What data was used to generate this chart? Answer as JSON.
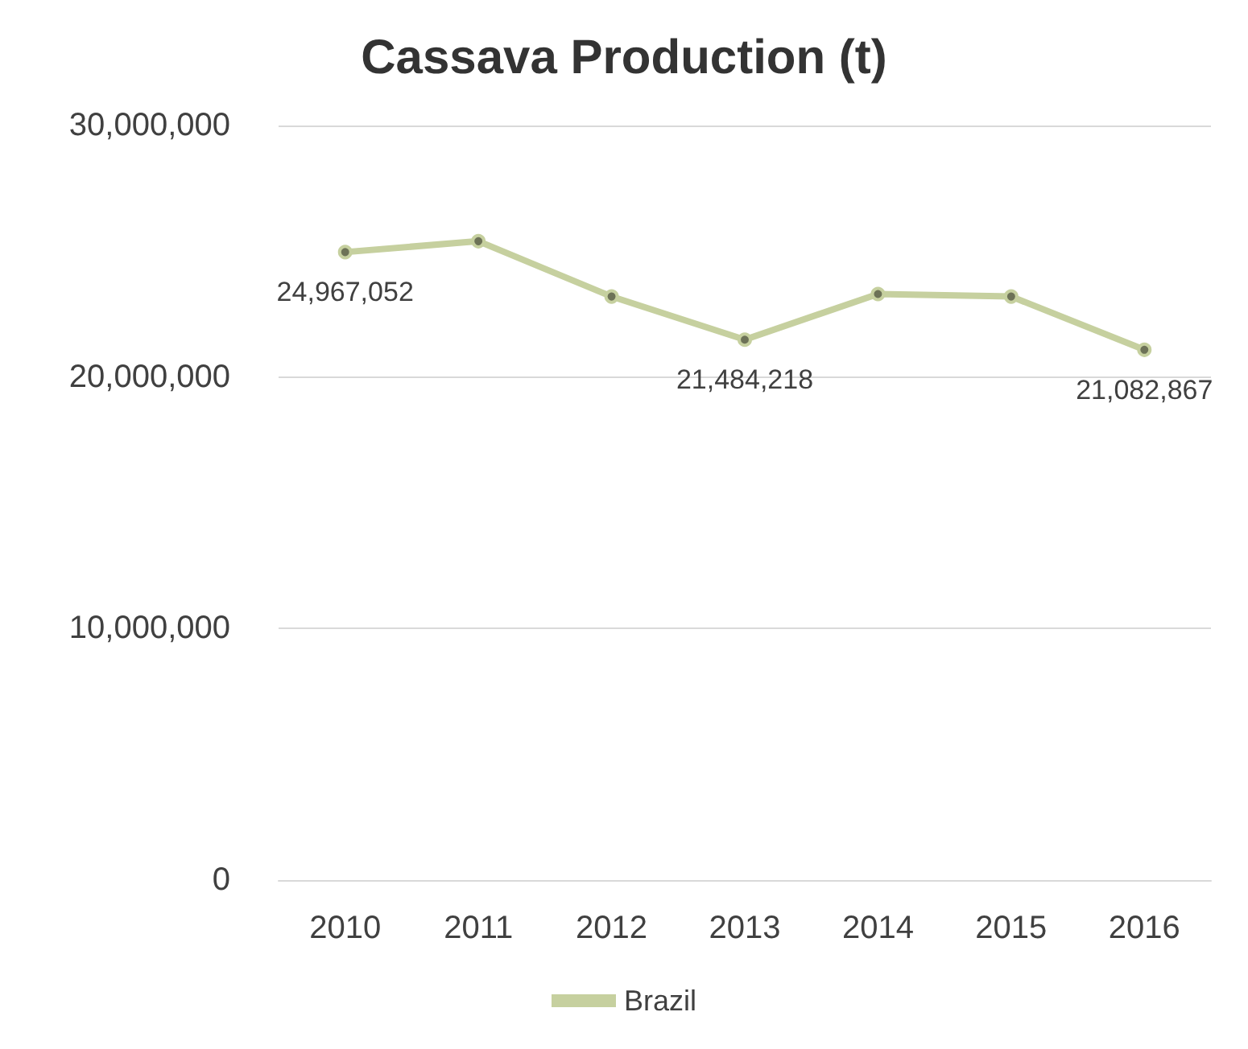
{
  "chart_data": {
    "type": "line",
    "title": "Cassava Production (t)",
    "categories": [
      "2010",
      "2011",
      "2012",
      "2013",
      "2014",
      "2015",
      "2016"
    ],
    "series": [
      {
        "name": "Brazil",
        "color": "#c6d09f",
        "values": [
          24967052,
          25400000,
          23200000,
          21484218,
          23300000,
          23200000,
          21082867
        ],
        "value_labels": [
          "24,967,052",
          null,
          null,
          "21,484,218",
          null,
          null,
          "21,082,867"
        ]
      }
    ],
    "ylim": [
      0,
      30000000
    ],
    "yticks": [
      0,
      {
        "value": 10000000,
        "label": "10,000,000"
      },
      {
        "value": 20000000,
        "label": "20,000,000"
      },
      {
        "value": 30000000,
        "label": "30,000,000"
      }
    ],
    "grid": "y",
    "legend": "bottom",
    "marker": "circle",
    "line_style": "solid"
  }
}
